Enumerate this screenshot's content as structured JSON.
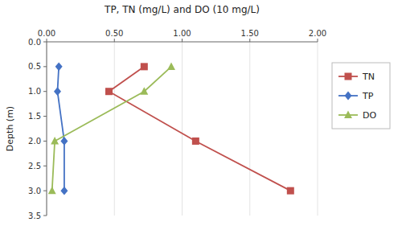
{
  "chart_data": {
    "type": "line",
    "title": "TP, TN (mg/L) and DO (10 mg/L)",
    "ylabel": "Depth (m)",
    "xlim": [
      0.0,
      2.0
    ],
    "ylim": [
      3.5,
      0.0
    ],
    "xticks": [
      {
        "value": 0,
        "label": "0.00"
      },
      {
        "value": 0.5,
        "label": "0.50"
      },
      {
        "value": 1,
        "label": "1.00"
      },
      {
        "value": 1.5,
        "label": "1.50"
      },
      {
        "value": 2,
        "label": "2.00"
      }
    ],
    "yticks": [
      {
        "value": 0,
        "label": "0.0"
      },
      0.5,
      {
        "value": 1,
        "label": "1.0"
      },
      1.5,
      {
        "value": 2,
        "label": "2.0"
      },
      2.5,
      {
        "value": 3,
        "label": "3.0"
      },
      3.5
    ],
    "grid": "x",
    "legend": "right",
    "series": [
      {
        "name": "TN",
        "color": "#C0504D",
        "marker": "square",
        "x": [
          0.72,
          0.46,
          1.1,
          1.8
        ],
        "values": [
          0.5,
          1.0,
          2.0,
          3.0
        ]
      },
      {
        "name": "TP",
        "color": "#4472C4",
        "marker": "diamond",
        "x": [
          0.09,
          0.08,
          0.13,
          0.13
        ],
        "values": [
          0.5,
          1.0,
          2.0,
          3.0
        ]
      },
      {
        "name": "DO",
        "color": "#9BBB59",
        "marker": "triangle",
        "x": [
          0.92,
          0.72,
          0.06,
          0.04
        ],
        "values": [
          0.5,
          1.0,
          2.0,
          3.0
        ]
      }
    ]
  }
}
